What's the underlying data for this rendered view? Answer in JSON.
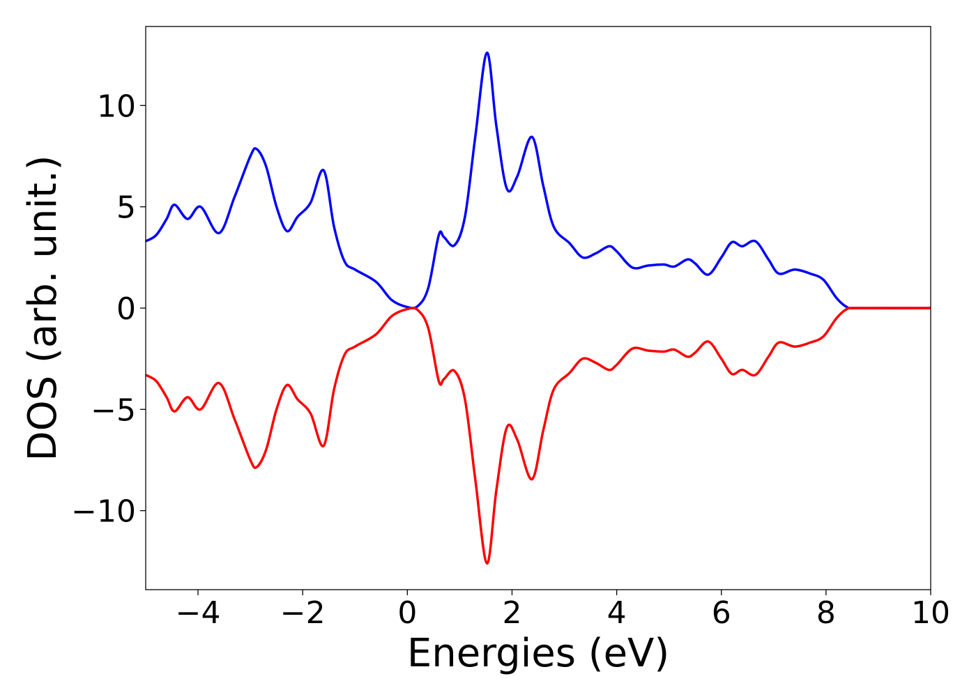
{
  "chart_data": {
    "type": "line",
    "title": "",
    "xlabel": "Energies (eV)",
    "ylabel": "DOS (arb. unit.)",
    "xlim": [
      -5,
      10
    ],
    "ylim": [
      -13.9,
      13.9
    ],
    "grid": false,
    "xticks": [
      -4,
      -2,
      0,
      2,
      4,
      6,
      8,
      10
    ],
    "xtick_labels": [
      "−4",
      "−2",
      "0",
      "2",
      "4",
      "6",
      "8",
      "10"
    ],
    "yticks": [
      -10,
      -5,
      0,
      5,
      10
    ],
    "ytick_labels": [
      "−10",
      "−5",
      "0",
      "5",
      "10"
    ],
    "x": [
      -5,
      -4.8,
      -4.6,
      -4.45,
      -4.2,
      -3.95,
      -3.6,
      -3.3,
      -3.0,
      -2.88,
      -2.7,
      -2.5,
      -2.3,
      -2.1,
      -1.85,
      -1.6,
      -1.4,
      -1.2,
      -1.0,
      -0.6,
      -0.3,
      0,
      0.2,
      0.4,
      0.6,
      0.7,
      0.9,
      1.1,
      1.3,
      1.52,
      1.7,
      1.9,
      2.1,
      2.38,
      2.6,
      2.8,
      3.1,
      3.35,
      3.6,
      3.85,
      4.0,
      4.3,
      4.6,
      4.9,
      5.1,
      5.35,
      5.5,
      5.75,
      6.0,
      6.2,
      6.4,
      6.65,
      6.9,
      7.1,
      7.4,
      7.7,
      7.95,
      8.2,
      8.4,
      8.6,
      10
    ],
    "series": [
      {
        "color": "#0000ff",
        "values": [
          3.3,
          3.6,
          4.4,
          5.1,
          4.4,
          5.0,
          3.7,
          5.5,
          7.5,
          7.85,
          7.0,
          5.0,
          3.8,
          4.5,
          5.2,
          6.8,
          4.0,
          2.3,
          1.9,
          1.3,
          0.4,
          0.05,
          0.1,
          1.0,
          3.6,
          3.5,
          3.1,
          4.5,
          8.5,
          12.6,
          9.0,
          5.9,
          6.5,
          8.45,
          6.0,
          4.0,
          3.2,
          2.5,
          2.7,
          3.05,
          2.8,
          2.0,
          2.1,
          2.15,
          2.05,
          2.4,
          2.2,
          1.65,
          2.5,
          3.25,
          3.05,
          3.3,
          2.4,
          1.7,
          1.9,
          1.7,
          1.4,
          0.5,
          0.05,
          0,
          0
        ]
      },
      {
        "color": "#ff0000",
        "values": [
          -3.3,
          -3.6,
          -4.4,
          -5.1,
          -4.4,
          -5.0,
          -3.7,
          -5.5,
          -7.5,
          -7.85,
          -7.0,
          -5.0,
          -3.8,
          -4.5,
          -5.2,
          -6.8,
          -4.0,
          -2.3,
          -1.9,
          -1.3,
          -0.4,
          -0.05,
          -0.1,
          -1.0,
          -3.6,
          -3.5,
          -3.1,
          -4.5,
          -8.5,
          -12.6,
          -9.0,
          -5.9,
          -6.5,
          -8.45,
          -6.0,
          -4.0,
          -3.2,
          -2.5,
          -2.7,
          -3.05,
          -2.8,
          -2.0,
          -2.1,
          -2.15,
          -2.05,
          -2.4,
          -2.2,
          -1.65,
          -2.5,
          -3.25,
          -3.05,
          -3.3,
          -2.4,
          -1.7,
          -1.9,
          -1.7,
          -1.4,
          -0.5,
          -0.05,
          0,
          0
        ]
      }
    ]
  }
}
